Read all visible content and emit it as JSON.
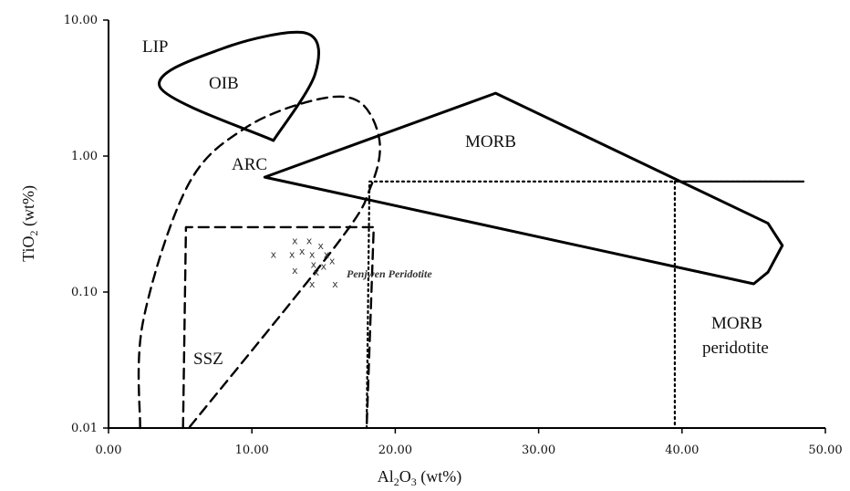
{
  "chart_data": {
    "type": "scatter",
    "title": "",
    "xlabel": "Al2O3 (wt%)",
    "ylabel": "TiO2 (wt%)",
    "xlim": [
      0,
      50
    ],
    "ylim": [
      0.01,
      10
    ],
    "y_scale": "log",
    "x_ticks": [
      "0.00",
      "10.00",
      "20.00",
      "30.00",
      "40.00",
      "50.00"
    ],
    "y_ticks": [
      "0.01",
      "0.10",
      "1.00",
      "10.00"
    ],
    "grid": false,
    "legend": "none",
    "series": [
      {
        "name": "Penjwen Peridotite",
        "marker": "x",
        "points": [
          [
            11.5,
            0.19
          ],
          [
            13.0,
            0.24
          ],
          [
            14.0,
            0.24
          ],
          [
            12.8,
            0.19
          ],
          [
            13.5,
            0.2
          ],
          [
            14.8,
            0.22
          ],
          [
            14.2,
            0.19
          ],
          [
            14.3,
            0.16
          ],
          [
            15.2,
            0.19
          ],
          [
            15.6,
            0.17
          ],
          [
            15.0,
            0.155
          ],
          [
            13.0,
            0.145
          ],
          [
            14.5,
            0.14
          ],
          [
            15.8,
            0.115
          ],
          [
            14.2,
            0.115
          ]
        ]
      }
    ],
    "regions": [
      {
        "label": "LIP",
        "style": "solid",
        "outline": [
          [
            11.5,
            1.3
          ],
          [
            3.6,
            3.2
          ],
          [
            8.0,
            6.2
          ],
          [
            13.8,
            8.0
          ],
          [
            14.4,
            4.0
          ],
          [
            11.5,
            1.3
          ]
        ]
      },
      {
        "label": "OIB",
        "style": "solid",
        "outline": [
          [
            11.5,
            1.3
          ],
          [
            3.6,
            3.2
          ],
          [
            8.0,
            6.2
          ],
          [
            13.8,
            8.0
          ],
          [
            14.4,
            4.0
          ],
          [
            11.5,
            1.3
          ]
        ]
      },
      {
        "label": "ARC",
        "style": "dashed",
        "outline": [
          [
            2.2,
            0.01
          ],
          [
            2.4,
            0.06
          ],
          [
            5.5,
            0.6
          ],
          [
            9.5,
            1.6
          ],
          [
            14.5,
            2.6
          ],
          [
            17.5,
            2.5
          ],
          [
            18.9,
            1.3
          ],
          [
            18.3,
            0.6
          ],
          [
            16.0,
            0.23
          ],
          [
            5.6,
            0.01
          ]
        ]
      },
      {
        "label": "SSZ",
        "style": "dashed",
        "outline": [
          [
            5.2,
            0.01
          ],
          [
            5.4,
            0.3
          ],
          [
            18.5,
            0.3
          ],
          [
            18.0,
            0.01
          ]
        ]
      },
      {
        "label": "MORB",
        "style": "solid",
        "outline": [
          [
            10.9,
            0.7
          ],
          [
            27.0,
            2.9
          ],
          [
            46.0,
            0.32
          ],
          [
            47.0,
            0.22
          ],
          [
            46.0,
            0.14
          ],
          [
            45.0,
            0.115
          ],
          [
            10.9,
            0.7
          ]
        ]
      },
      {
        "label": "MORB peridotite",
        "style": "dotted",
        "outline": [
          [
            18.0,
            0.01
          ],
          [
            18.2,
            0.65
          ],
          [
            48.5,
            0.65
          ],
          [
            39.5,
            0.65
          ],
          [
            39.5,
            0.01
          ]
        ]
      }
    ],
    "annotations": [
      "LIP",
      "OIB",
      "ARC",
      "MORB",
      "SSZ",
      "MORB",
      "peridotite",
      "Penjwen Peridotite"
    ]
  }
}
